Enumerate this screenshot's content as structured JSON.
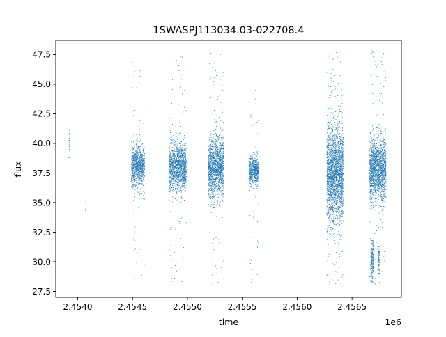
{
  "chart_data": {
    "type": "scatter",
    "title": "1SWASPJ113034.03-022708.4",
    "xlabel": "time",
    "ylabel": "flux",
    "x_offset_label": "1e6",
    "xlim": [
      2453800,
      2456950
    ],
    "ylim": [
      27,
      48.7
    ],
    "x_ticks": [
      2454000,
      2454500,
      2455000,
      2455500,
      2456000,
      2456500
    ],
    "x_tick_labels": [
      "2.4540",
      "2.4545",
      "2.4550",
      "2.4555",
      "2.4560",
      "2.4565"
    ],
    "y_ticks": [
      27.5,
      30.0,
      32.5,
      35.0,
      37.5,
      40.0,
      42.5,
      45.0,
      47.5
    ],
    "y_tick_labels": [
      "27.5",
      "30.0",
      "32.5",
      "35.0",
      "37.5",
      "40.0",
      "42.5",
      "45.0",
      "47.5"
    ],
    "grid": false,
    "legend": "none",
    "marker_color": "#1f77b4",
    "clusters": [
      {
        "t_start": 2453920,
        "t_end": 2453930,
        "flux_center": 40.0,
        "flux_spread": 0.9,
        "flux_min": 38.8,
        "flux_max": 41.5,
        "points": 25
      },
      {
        "t_start": 2454070,
        "t_end": 2454075,
        "flux_center": 34.5,
        "flux_spread": 0.3,
        "flux_min": 34.0,
        "flux_max": 37.0,
        "points": 6
      },
      {
        "t_start": 2454490,
        "t_end": 2454610,
        "flux_center": 38.0,
        "flux_spread": 0.9,
        "flux_min": 28.6,
        "flux_max": 47.4,
        "points": 1100
      },
      {
        "t_start": 2454830,
        "t_end": 2454990,
        "flux_center": 38.0,
        "flux_spread": 1.0,
        "flux_min": 28.0,
        "flux_max": 47.6,
        "points": 1600
      },
      {
        "t_start": 2455190,
        "t_end": 2455330,
        "flux_center": 38.0,
        "flux_spread": 1.3,
        "flux_min": 28.0,
        "flux_max": 47.7,
        "points": 1700
      },
      {
        "t_start": 2455560,
        "t_end": 2455650,
        "flux_center": 37.8,
        "flux_spread": 0.6,
        "flux_min": 28.2,
        "flux_max": 45.0,
        "points": 700
      },
      {
        "t_start": 2456270,
        "t_end": 2456420,
        "flux_center": 37.5,
        "flux_spread": 2.0,
        "flux_min": 28.0,
        "flux_max": 47.8,
        "points": 2600
      },
      {
        "t_start": 2456660,
        "t_end": 2456810,
        "flux_center": 37.8,
        "flux_spread": 1.3,
        "flux_min": 28.0,
        "flux_max": 47.8,
        "points": 1900
      },
      {
        "t_start": 2456670,
        "t_end": 2456700,
        "flux_center": 30.0,
        "flux_spread": 0.9,
        "flux_min": 28.3,
        "flux_max": 31.8,
        "points": 250
      },
      {
        "t_start": 2456735,
        "t_end": 2456750,
        "flux_center": 30.2,
        "flux_spread": 0.8,
        "flux_min": 29.0,
        "flux_max": 31.3,
        "points": 120
      }
    ]
  }
}
